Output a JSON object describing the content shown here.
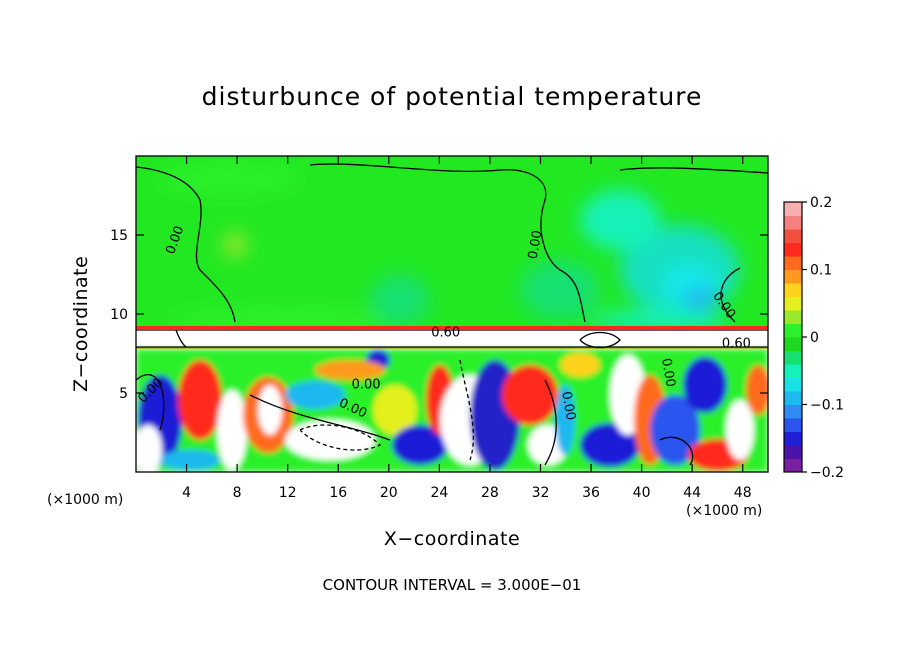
{
  "chart_data": {
    "type": "heatmap",
    "title": "disturbunce of potential temperature",
    "xlabel": "X−coordinate",
    "ylabel": "Z−coordinate",
    "x_unit": "(×1000 m)",
    "x_unit_right": "(×1000 m)",
    "xlim": [
      0,
      50
    ],
    "ylim": [
      0,
      20
    ],
    "x_ticks": [
      4,
      8,
      12,
      16,
      20,
      24,
      28,
      32,
      36,
      40,
      44,
      48
    ],
    "y_ticks": [
      5,
      10,
      15
    ],
    "colorbar": {
      "range": [
        -0.2,
        0.2
      ],
      "tick_labels": [
        "0.2",
        "0.1",
        "0",
        "−0.1",
        "−0.2"
      ],
      "tick_values": [
        0.2,
        0.1,
        0,
        -0.1,
        -0.2
      ],
      "colors": [
        "#7b1fa2",
        "#4a14a8",
        "#1f1fd6",
        "#2b55ee",
        "#2f8cf2",
        "#1fb8ef",
        "#18e1e8",
        "#14f2b8",
        "#18e070",
        "#1ed81e",
        "#2bf02b",
        "#9ae82a",
        "#e4f01e",
        "#ffd21e",
        "#ff9a1e",
        "#ff6a1e",
        "#ff2a1e",
        "#f0503c",
        "#f48080",
        "#f6b0b0"
      ]
    },
    "contour_labels": [
      {
        "text": "0.00",
        "x": 3.0,
        "z": 14.7,
        "angle": -70
      },
      {
        "text": "0.00",
        "x": 31.5,
        "z": 14.4,
        "angle": -80
      },
      {
        "text": "0.00",
        "x": 46.6,
        "z": 10.6,
        "angle": 55
      },
      {
        "text": "0.60",
        "x": 24.5,
        "z": 8.9,
        "angle": 0
      },
      {
        "text": "0.60",
        "x": 47.5,
        "z": 8.2,
        "angle": 0
      },
      {
        "text": "0.00",
        "x": 1.1,
        "z": 5.2,
        "angle": -45
      },
      {
        "text": "0.00",
        "x": 18.2,
        "z": 5.6,
        "angle": 0
      },
      {
        "text": "0.00",
        "x": 17.2,
        "z": 4.1,
        "angle": 25
      },
      {
        "text": "0.00",
        "x": 34.3,
        "z": 4.2,
        "angle": 80
      },
      {
        "text": "0.00",
        "x": 42.2,
        "z": 6.3,
        "angle": 80
      }
    ],
    "contour_interval_text": "CONTOUR INTERVAL = 3.000E−01"
  }
}
